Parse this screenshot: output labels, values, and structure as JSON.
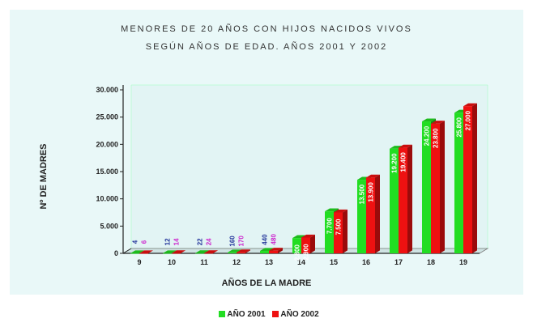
{
  "chart_data": {
    "type": "bar",
    "title": "MENORES DE 20 AÑOS CON HIJOS NACIDOS VIVOS SEGÚN AÑOS DE EDAD. AÑOS 2001 Y 2002",
    "title_lines": [
      "MENORES DE 20 AÑOS CON HIJOS NACIDOS VIVOS",
      "SEGÚN AÑOS DE EDAD. AÑOS 2001 Y 2002"
    ],
    "xlabel": "AÑOS DE LA MADRE",
    "ylabel": "Nº DE MADRES",
    "ylim": [
      0,
      30000
    ],
    "yticks": [
      "0",
      "5.000",
      "10.000",
      "15.000",
      "20.000",
      "25.000",
      "30.000"
    ],
    "categories": [
      "9",
      "10",
      "11",
      "12",
      "13",
      "14",
      "15",
      "16",
      "17",
      "18",
      "19"
    ],
    "series": [
      {
        "name": "AÑO 2001",
        "color": "#22dd22",
        "values": [
          4,
          12,
          22,
          160,
          440,
          2800,
          7700,
          13500,
          19200,
          24200,
          25800
        ]
      },
      {
        "name": "AÑO 2002",
        "color": "#ee1111",
        "values": [
          6,
          14,
          24,
          170,
          480,
          2900,
          7500,
          13900,
          19400,
          23800,
          27000
        ]
      }
    ],
    "grid": false,
    "legend_position": "bottom"
  }
}
